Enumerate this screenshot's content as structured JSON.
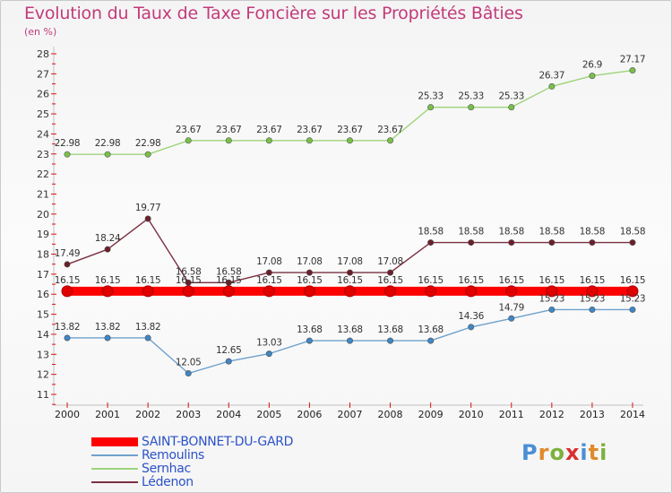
{
  "title": "Evolution du Taux de Taxe Foncière sur les Propriétés Bâties",
  "unit": "(en %)",
  "logo": {
    "text": "Proxiti",
    "letter_colors": [
      "#4a8fd6",
      "#e08a2a",
      "#7cb23c",
      "#d9302f",
      "#4a8fd6",
      "#e08a2a",
      "#7cb23c"
    ]
  },
  "chart_data": {
    "type": "line",
    "title": "Evolution du Taux de Taxe Foncière sur les Propriétés Bâties",
    "ylabel": "(en %)",
    "xlabel": "",
    "x": [
      "2000",
      "2001",
      "2002",
      "2003",
      "2004",
      "2005",
      "2006",
      "2007",
      "2008",
      "2009",
      "2010",
      "2011",
      "2012",
      "2013",
      "2014"
    ],
    "ylim": [
      11,
      28
    ],
    "yticks": [
      11,
      12,
      13,
      14,
      15,
      16,
      17,
      18,
      19,
      20,
      21,
      22,
      23,
      24,
      25,
      26,
      27,
      28
    ],
    "grid": false,
    "legend_position": "bottom-left",
    "series": [
      {
        "name": "SAINT-BONNET-DU-GARD",
        "color": "#ff0000",
        "marker_color": "#e00000",
        "emphasis": true,
        "values": [
          16.15,
          16.15,
          16.15,
          16.15,
          16.15,
          16.15,
          16.15,
          16.15,
          16.15,
          16.15,
          16.15,
          16.15,
          16.15,
          16.15,
          16.15
        ],
        "labels": [
          "16.15",
          "16.15",
          "16.15",
          "16.15",
          "16.15",
          "16.15",
          "16.15",
          "16.15",
          "16.15",
          "16.15",
          "16.15",
          "16.15",
          "16.15",
          "16.15",
          "16.15"
        ]
      },
      {
        "name": "Remoulins",
        "color": "#6ea1cc",
        "marker_color": "#3f86c4",
        "values": [
          13.82,
          13.82,
          13.82,
          12.05,
          12.65,
          13.03,
          13.68,
          13.68,
          13.68,
          13.68,
          14.36,
          14.79,
          15.23,
          15.23,
          15.23
        ],
        "labels": [
          "13.82",
          "13.82",
          "13.82",
          "12.05",
          "12.65",
          "13.03",
          "13.68",
          "13.68",
          "13.68",
          "13.68",
          "14.36",
          "14.79",
          "15.23",
          "15.23",
          "15.23"
        ]
      },
      {
        "name": "Sernhac",
        "color": "#9ed47a",
        "marker_color": "#78c04a",
        "values": [
          22.98,
          22.98,
          22.98,
          23.67,
          23.67,
          23.67,
          23.67,
          23.67,
          23.67,
          25.33,
          25.33,
          25.33,
          26.37,
          26.9,
          27.17
        ],
        "labels": [
          "22.98",
          "22.98",
          "22.98",
          "23.67",
          "23.67",
          "23.67",
          "23.67",
          "23.67",
          "23.67",
          "25.33",
          "25.33",
          "25.33",
          "26.37",
          "26.9",
          "27.17"
        ]
      },
      {
        "name": "Lédenon",
        "color": "#7a3040",
        "marker_color": "#6b1f2a",
        "values": [
          17.49,
          18.24,
          19.77,
          16.58,
          16.58,
          17.08,
          17.08,
          17.08,
          17.08,
          18.58,
          18.58,
          18.58,
          18.58,
          18.58,
          18.58
        ],
        "labels": [
          "17.49",
          "18.24",
          "19.77",
          "16.58",
          "16.58",
          "17.08",
          "17.08",
          "17.08",
          "17.08",
          "18.58",
          "18.58",
          "18.58",
          "18.58",
          "18.58",
          "18.58"
        ]
      }
    ]
  }
}
